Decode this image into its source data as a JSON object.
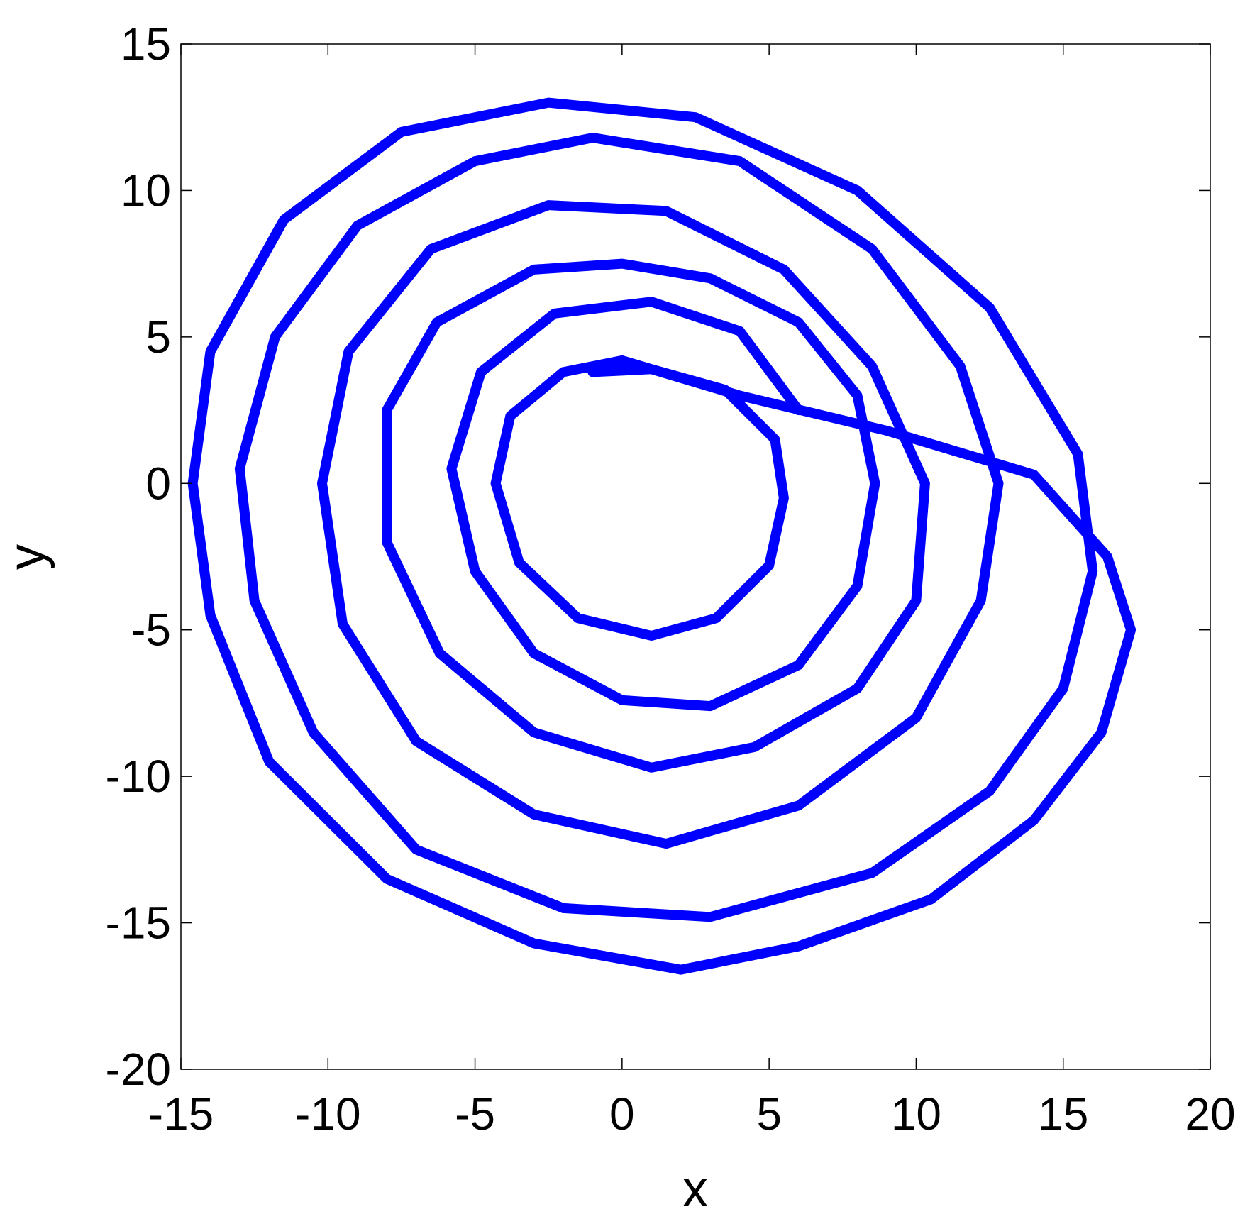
{
  "chart_data": {
    "type": "line",
    "xlabel": "x",
    "ylabel": "y",
    "xlim": [
      -15,
      20
    ],
    "xticks": [
      -15,
      -10,
      -5,
      0,
      5,
      10,
      15,
      20
    ],
    "ylim": [
      -20,
      15
    ],
    "yticks": [
      -20,
      -15,
      -10,
      -5,
      0,
      5,
      10,
      15
    ],
    "grid": false,
    "box": true,
    "x": [
      -1,
      1,
      3.5,
      5.2,
      5.5,
      5,
      3.2,
      1,
      -1.5,
      -3.5,
      -4.3,
      -3.8,
      -2,
      0,
      4,
      9,
      14,
      16.5,
      17.3,
      16.3,
      14,
      10.5,
      6,
      2,
      -3,
      -8,
      -12,
      -14,
      -14.6,
      -14,
      -11.5,
      -7.5,
      -2.5,
      2.5,
      8,
      12.5,
      15.5,
      16,
      15,
      12.5,
      8.5,
      3,
      -2,
      -7,
      -10.5,
      -12.5,
      -13,
      -11.8,
      -9,
      -5,
      -1,
      4,
      8.5,
      11.5,
      12.8,
      12.2,
      10,
      6,
      1.5,
      -3,
      -7,
      -9.5,
      -10.2,
      -9.3,
      -6.5,
      -2.5,
      1.5,
      5.5,
      8.5,
      10.3,
      10,
      8,
      4.5,
      1,
      -3,
      -6.2,
      -8,
      -8,
      -6.3,
      -3,
      0,
      3,
      6,
      8,
      8.6,
      8,
      6,
      3,
      0,
      -3,
      -5,
      -5.8,
      -4.8,
      -2.3,
      1,
      4,
      6
    ],
    "series": [
      {
        "color": "#0000ff",
        "values": [
          3.8,
          3.9,
          3.2,
          1.5,
          -0.5,
          -2.8,
          -4.6,
          -5.2,
          -4.6,
          -2.7,
          0,
          2.3,
          3.8,
          4.2,
          3,
          1.8,
          0.3,
          -2.5,
          -5,
          -8.5,
          -11.5,
          -14.2,
          -15.8,
          -16.6,
          -15.7,
          -13.5,
          -9.5,
          -4.5,
          0,
          4.5,
          9,
          12,
          13,
          12.5,
          10,
          6,
          1,
          -3,
          -7,
          -10.5,
          -13.3,
          -14.8,
          -14.5,
          -12.5,
          -8.5,
          -4,
          0.5,
          5,
          8.8,
          11,
          11.8,
          11,
          8,
          4,
          0,
          -4,
          -8,
          -11,
          -12.3,
          -11.3,
          -8.8,
          -4.8,
          0,
          4.5,
          8,
          9.5,
          9.3,
          7.3,
          4,
          0,
          -4,
          -7,
          -9,
          -9.7,
          -8.5,
          -5.8,
          -2,
          2.5,
          5.5,
          7.3,
          7.5,
          7,
          5.5,
          3,
          0,
          -3.5,
          -6.2,
          -7.6,
          -7.4,
          -5.8,
          -3,
          0.5,
          3.8,
          5.8,
          6.2,
          5.2,
          2.5
        ]
      }
    ]
  }
}
